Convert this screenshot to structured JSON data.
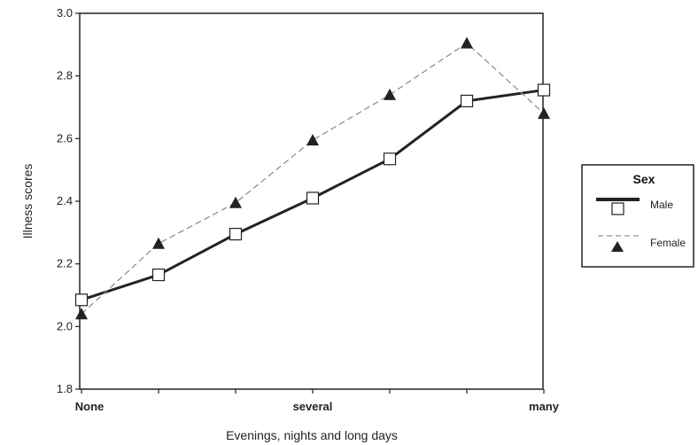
{
  "chart_data": {
    "type": "line",
    "categories": [
      "None",
      "",
      "",
      "several",
      "",
      "",
      "many"
    ],
    "xlabel": "Evenings, nights and long days",
    "ylabel": "Illness scores",
    "ylim": [
      1.8,
      3.0
    ],
    "yticks": [
      "1.8",
      "2.0",
      "2.2",
      "2.4",
      "2.6",
      "2.8",
      "3.0"
    ],
    "grid": false,
    "legend": {
      "title": "Sex",
      "placement": "right"
    },
    "series": [
      {
        "name": "Male",
        "values": [
          2.085,
          2.165,
          2.295,
          2.41,
          2.535,
          2.72,
          2.755
        ],
        "line": "solid",
        "marker": "open-square",
        "color": "#222222"
      },
      {
        "name": "Female",
        "values": [
          2.04,
          2.265,
          2.395,
          2.595,
          2.74,
          2.905,
          2.68
        ],
        "line": "dashed",
        "marker": "filled-triangle",
        "color": "#222222"
      }
    ]
  }
}
